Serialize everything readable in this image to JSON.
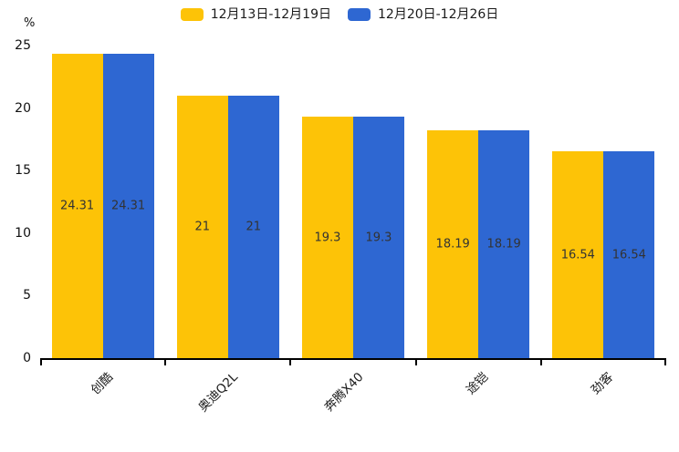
{
  "chart_data": {
    "type": "bar",
    "title": "",
    "categories": [
      "创酷",
      "奥迪Q2L",
      "奔腾X40",
      "途铠",
      "劲客"
    ],
    "series": [
      {
        "name": "12月13日-12月19日",
        "color": "#FDC307",
        "values": [
          24.31,
          21,
          19.3,
          18.19,
          16.54
        ]
      },
      {
        "name": "12月20日-12月26日",
        "color": "#2E67D2",
        "values": [
          24.31,
          21,
          19.3,
          18.19,
          16.54
        ]
      }
    ],
    "xlabel": "",
    "ylabel": "%",
    "ylim": [
      0,
      25
    ],
    "yticks": [
      0,
      5,
      10,
      15,
      20,
      25
    ],
    "grid": false,
    "legend_position": "top",
    "value_labels_shown": true,
    "value_label_color": "#333333",
    "axis_line_color": "#000000"
  }
}
